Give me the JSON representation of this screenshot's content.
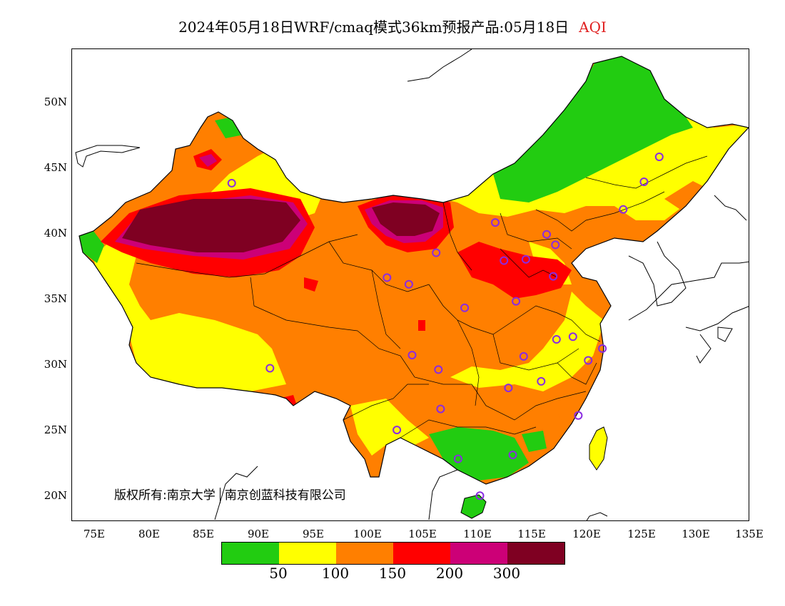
{
  "title": {
    "text": "2024年05月18日WRF/cmaq模式36km预报产品:05月18日",
    "variable": "AQI"
  },
  "map": {
    "latitude_labels": [
      "50N",
      "45N",
      "40N",
      "35N",
      "30N",
      "25N",
      "20N"
    ],
    "longitude_labels": [
      "75E",
      "80E",
      "85E",
      "90E",
      "95E",
      "100E",
      "105E",
      "110E",
      "115E",
      "120E",
      "125E",
      "130E",
      "135E"
    ],
    "lat_range": [
      18,
      54
    ],
    "lon_range": [
      73,
      135
    ],
    "monitoring_sites": [
      {
        "lon": 126.7,
        "lat": 45.8
      },
      {
        "lon": 125.3,
        "lat": 43.9
      },
      {
        "lon": 123.4,
        "lat": 41.8
      },
      {
        "lon": 116.4,
        "lat": 39.9
      },
      {
        "lon": 117.2,
        "lat": 39.1
      },
      {
        "lon": 114.5,
        "lat": 38.0
      },
      {
        "lon": 112.5,
        "lat": 37.9
      },
      {
        "lon": 111.7,
        "lat": 40.8
      },
      {
        "lon": 117.0,
        "lat": 36.7
      },
      {
        "lon": 113.6,
        "lat": 34.8
      },
      {
        "lon": 108.9,
        "lat": 34.3
      },
      {
        "lon": 106.3,
        "lat": 38.5
      },
      {
        "lon": 103.8,
        "lat": 36.1
      },
      {
        "lon": 101.8,
        "lat": 36.6
      },
      {
        "lon": 87.6,
        "lat": 43.8
      },
      {
        "lon": 91.1,
        "lat": 29.7
      },
      {
        "lon": 104.1,
        "lat": 30.7
      },
      {
        "lon": 106.5,
        "lat": 29.6
      },
      {
        "lon": 106.7,
        "lat": 26.6
      },
      {
        "lon": 102.7,
        "lat": 25.0
      },
      {
        "lon": 108.3,
        "lat": 22.8
      },
      {
        "lon": 113.3,
        "lat": 23.1
      },
      {
        "lon": 110.3,
        "lat": 20.0
      },
      {
        "lon": 112.9,
        "lat": 28.2
      },
      {
        "lon": 114.3,
        "lat": 30.6
      },
      {
        "lon": 115.9,
        "lat": 28.7
      },
      {
        "lon": 117.3,
        "lat": 31.9
      },
      {
        "lon": 118.8,
        "lat": 32.1
      },
      {
        "lon": 120.2,
        "lat": 30.3
      },
      {
        "lon": 121.5,
        "lat": 31.2
      },
      {
        "lon": 119.3,
        "lat": 26.1
      }
    ]
  },
  "copyright": {
    "owner": "版权所有:南京大学",
    "company": "南京创蓝科技有限公司"
  },
  "legend": {
    "colors": [
      "#22cc11",
      "#ffff00",
      "#ff7f00",
      "#ff0000",
      "#cc0077",
      "#7f0022"
    ],
    "labels": [
      "50",
      "100",
      "150",
      "200",
      "300"
    ]
  }
}
